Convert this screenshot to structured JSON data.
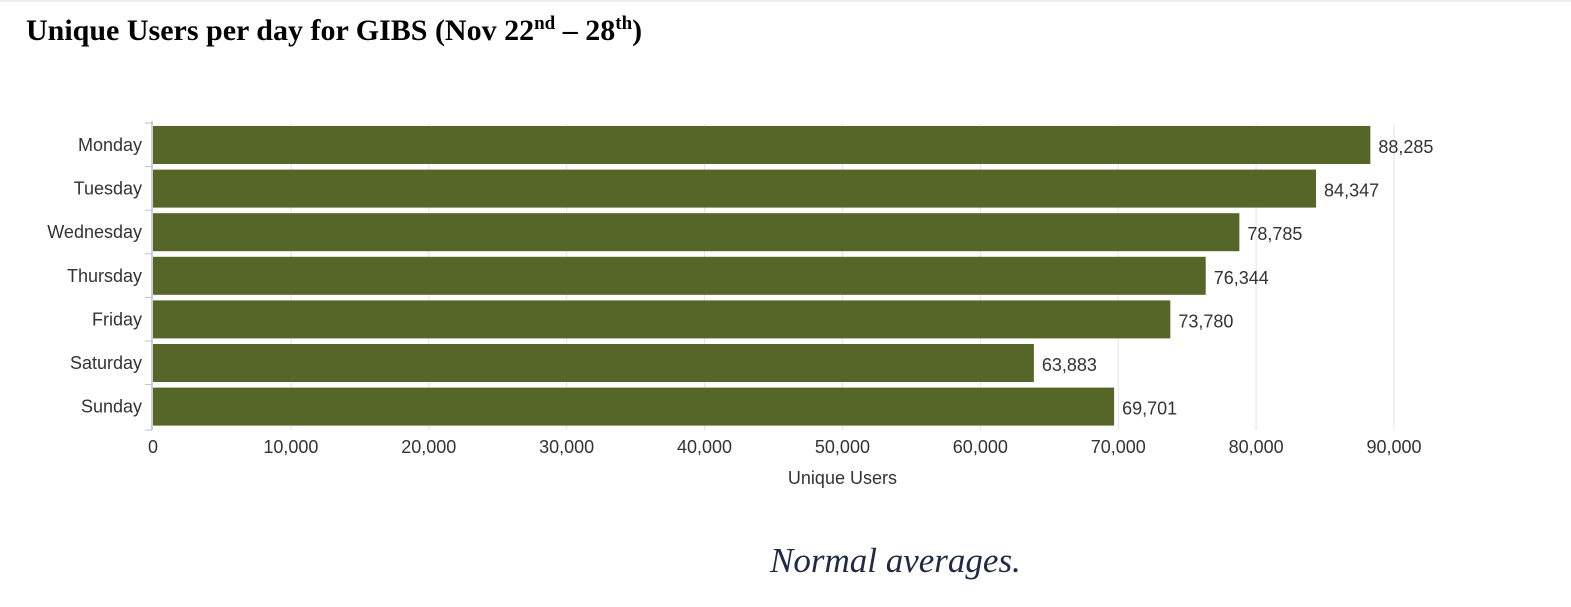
{
  "title": {
    "main": "Unique Users per day for GIBS (Nov 22",
    "sup1": "nd",
    "mid": " – 28",
    "sup2": "th",
    "end": ")"
  },
  "caption": "Normal averages.",
  "colors": {
    "bar": "#556628",
    "grid": "#e3e3e3",
    "axis": "#b8c0cc",
    "text": "#333333"
  },
  "chart_data": {
    "type": "bar",
    "orientation": "horizontal",
    "categories": [
      "Monday",
      "Tuesday",
      "Wednesday",
      "Thursday",
      "Friday",
      "Saturday",
      "Sunday"
    ],
    "values": [
      88285,
      84347,
      78785,
      76344,
      73780,
      63883,
      69701
    ],
    "value_labels": [
      "88,285",
      "84,347",
      "78,785",
      "76,344",
      "73,780",
      "63,883",
      "69,701"
    ],
    "xticks": [
      0,
      10000,
      20000,
      30000,
      40000,
      50000,
      60000,
      70000,
      80000,
      90000
    ],
    "xtick_labels": [
      "0",
      "10,000",
      "20,000",
      "30,000",
      "40,000",
      "50,000",
      "60,000",
      "70,000",
      "80,000",
      "90,000"
    ],
    "xlim": [
      0,
      90000
    ],
    "xlabel": "Unique Users",
    "ylabel": "",
    "grid": true,
    "legend": "none"
  }
}
